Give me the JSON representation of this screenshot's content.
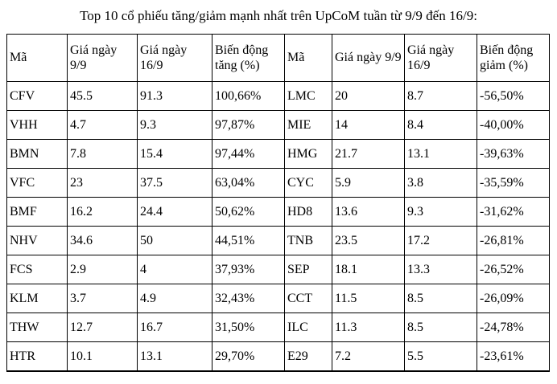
{
  "title": "Top 10 cổ phiếu tăng/giảm mạnh nhất trên UpCoM tuần từ 9/9 đến 16/9:",
  "table": {
    "headers": [
      "Mã",
      "Giá ngày 9/9",
      "Giá ngày 16/9",
      "Biến động tăng (%)",
      "Mã",
      "Giá ngày 9/9",
      "Giá ngày 16/9",
      "Biến động giảm (%)"
    ],
    "rows": [
      [
        "CFV",
        "45.5",
        "91.3",
        "100,66%",
        "LMC",
        "20",
        "8.7",
        "-56,50%"
      ],
      [
        "VHH",
        "4.7",
        "9.3",
        "97,87%",
        "MIE",
        "14",
        "8.4",
        "-40,00%"
      ],
      [
        "BMN",
        "7.8",
        "15.4",
        "97,44%",
        "HMG",
        "21.7",
        "13.1",
        "-39,63%"
      ],
      [
        "VFC",
        "23",
        "37.5",
        "63,04%",
        "CYC",
        "5.9",
        "3.8",
        "-35,59%"
      ],
      [
        "BMF",
        "16.2",
        "24.4",
        "50,62%",
        "HD8",
        "13.6",
        "9.3",
        "-31,62%"
      ],
      [
        "NHV",
        "34.6",
        "50",
        "44,51%",
        "TNB",
        "23.5",
        "17.2",
        "-26,81%"
      ],
      [
        "FCS",
        "2.9",
        "4",
        "37,93%",
        "SEP",
        "18.1",
        "13.3",
        "-26,52%"
      ],
      [
        "KLM",
        "3.7",
        "4.9",
        "32,43%",
        "CCT",
        "11.5",
        "8.5",
        "-26,09%"
      ],
      [
        "THW",
        "12.7",
        "16.7",
        "31,50%",
        "ILC",
        "11.3",
        "8.5",
        "-24,78%"
      ],
      [
        "HTR",
        "10.1",
        "13.1",
        "29,70%",
        "E29",
        "7.2",
        "5.5",
        "-23,61%"
      ]
    ]
  },
  "colors": {
    "text": "#000000",
    "border": "#000000",
    "background": "#ffffff"
  }
}
